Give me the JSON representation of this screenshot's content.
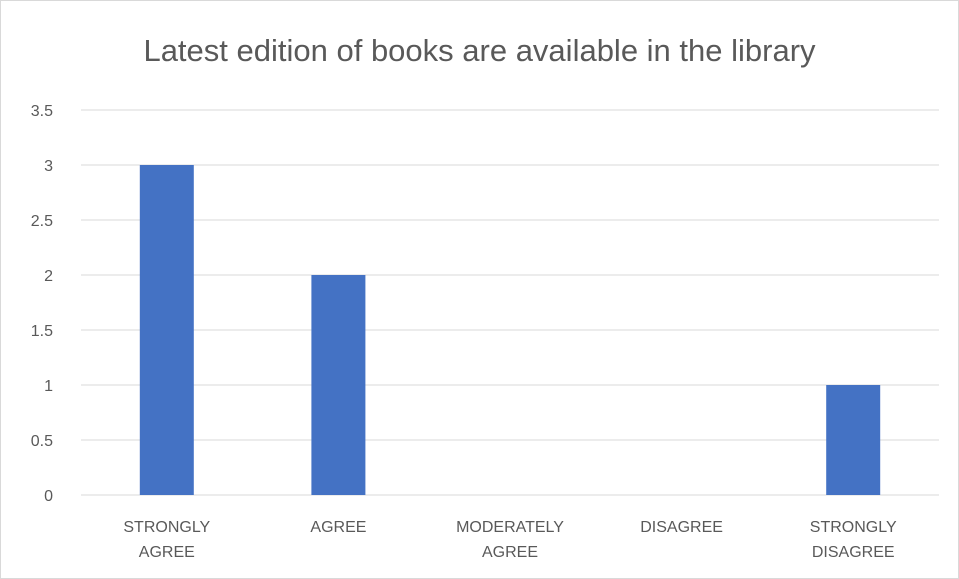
{
  "chart_data": {
    "type": "bar",
    "title": "Latest edition of books are available in the library",
    "categories": [
      [
        "STRONGLY",
        "AGREE"
      ],
      [
        "AGREE"
      ],
      [
        "MODERATELY",
        "AGREE"
      ],
      [
        "DISAGREE"
      ],
      [
        "STRONGLY",
        "DISAGREE"
      ]
    ],
    "values": [
      3,
      2,
      0,
      0,
      1
    ],
    "ylim": [
      0,
      3.5
    ],
    "yticks": [
      0,
      0.5,
      1,
      1.5,
      2,
      2.5,
      3,
      3.5
    ],
    "xlabel": "",
    "ylabel": "",
    "grid": true,
    "legend": "none",
    "colors": {
      "bar": "#4472c4",
      "grid": "#d9d9d9",
      "text": "#595959"
    }
  }
}
